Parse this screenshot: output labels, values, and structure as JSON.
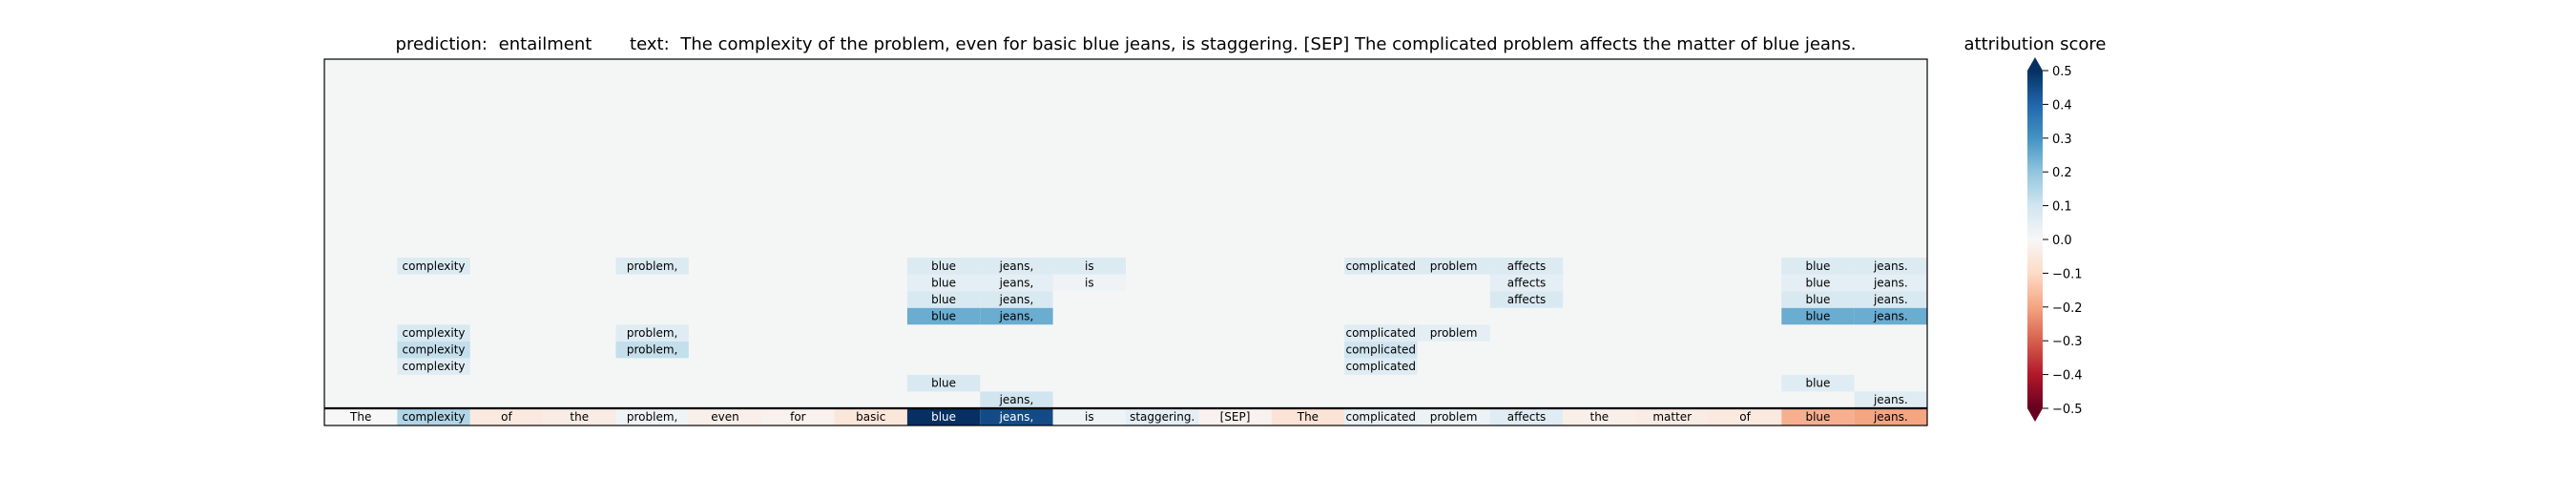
{
  "chart_data": {
    "type": "heatmap",
    "title_prefix": "prediction:",
    "prediction": "entailment",
    "text_prefix": "text:",
    "text": "The complexity of the problem, even for basic blue jeans, is staggering. [SEP] The complicated problem affects the matter of blue jeans.",
    "colorbar_label": "attribution score",
    "colormap": "RdBu",
    "vmin": -0.5,
    "vmax": 0.5,
    "colorbar_ticks": [
      {
        "value": 0.5,
        "label": "0.5"
      },
      {
        "value": 0.4,
        "label": "0.4"
      },
      {
        "value": 0.3,
        "label": "0.3"
      },
      {
        "value": 0.2,
        "label": "0.2"
      },
      {
        "value": 0.1,
        "label": "0.1"
      },
      {
        "value": 0.0,
        "label": "0.0"
      },
      {
        "value": -0.1,
        "label": "−0.1"
      },
      {
        "value": -0.2,
        "label": "−0.2"
      },
      {
        "value": -0.3,
        "label": "−0.3"
      },
      {
        "value": -0.4,
        "label": "−0.4"
      },
      {
        "value": -0.5,
        "label": "−0.5"
      }
    ],
    "tokens": [
      "The",
      "complexity",
      "of",
      "the",
      "problem,",
      "even",
      "for",
      "basic",
      "blue",
      "jeans,",
      "is",
      "staggering.",
      "[SEP]",
      "The",
      "complicated",
      "problem",
      "affects",
      "the",
      "matter",
      "of",
      "blue",
      "jeans."
    ],
    "n_rows": 21,
    "bottom_row": [
      0.0,
      0.15,
      -0.05,
      -0.04,
      0.02,
      -0.03,
      -0.02,
      -0.06,
      0.5,
      0.45,
      0.02,
      0.05,
      -0.02,
      -0.07,
      0.04,
      0.03,
      0.06,
      -0.03,
      -0.04,
      -0.05,
      -0.18,
      -0.2
    ],
    "upper_rows": [
      {
        "row": 1,
        "cells": [
          {
            "i": 9,
            "v": 0.1
          },
          {
            "i": 21,
            "v": 0.06
          }
        ]
      },
      {
        "row": 2,
        "cells": [
          {
            "i": 8,
            "v": 0.08
          },
          {
            "i": 20,
            "v": 0.06
          }
        ]
      },
      {
        "row": 3,
        "cells": [
          {
            "i": 1,
            "v": 0.06
          },
          {
            "i": 14,
            "v": 0.06
          }
        ]
      },
      {
        "row": 4,
        "cells": [
          {
            "i": 1,
            "v": 0.12
          },
          {
            "i": 4,
            "v": 0.12
          },
          {
            "i": 14,
            "v": 0.1
          }
        ]
      },
      {
        "row": 5,
        "cells": [
          {
            "i": 1,
            "v": 0.08
          },
          {
            "i": 4,
            "v": 0.06
          },
          {
            "i": 14,
            "v": 0.06
          },
          {
            "i": 15,
            "v": 0.05
          }
        ]
      },
      {
        "row": 6,
        "cells": [
          {
            "i": 8,
            "v": 0.25
          },
          {
            "i": 9,
            "v": 0.25
          },
          {
            "i": 20,
            "v": 0.25
          },
          {
            "i": 21,
            "v": 0.25
          }
        ]
      },
      {
        "row": 7,
        "cells": [
          {
            "i": 8,
            "v": 0.08
          },
          {
            "i": 9,
            "v": 0.08
          },
          {
            "i": 16,
            "v": 0.08
          },
          {
            "i": 20,
            "v": 0.08
          },
          {
            "i": 21,
            "v": 0.08
          }
        ]
      },
      {
        "row": 8,
        "cells": [
          {
            "i": 8,
            "v": 0.05
          },
          {
            "i": 9,
            "v": 0.05
          },
          {
            "i": 10,
            "v": 0.02
          },
          {
            "i": 16,
            "v": 0.05
          },
          {
            "i": 20,
            "v": 0.05
          },
          {
            "i": 21,
            "v": 0.05
          }
        ]
      },
      {
        "row": 9,
        "cells": [
          {
            "i": 1,
            "v": 0.07
          },
          {
            "i": 4,
            "v": 0.07
          },
          {
            "i": 8,
            "v": 0.07
          },
          {
            "i": 9,
            "v": 0.07
          },
          {
            "i": 10,
            "v": 0.07
          },
          {
            "i": 14,
            "v": 0.07
          },
          {
            "i": 15,
            "v": 0.07
          },
          {
            "i": 16,
            "v": 0.07
          },
          {
            "i": 20,
            "v": 0.07
          },
          {
            "i": 21,
            "v": 0.07
          }
        ]
      }
    ]
  }
}
